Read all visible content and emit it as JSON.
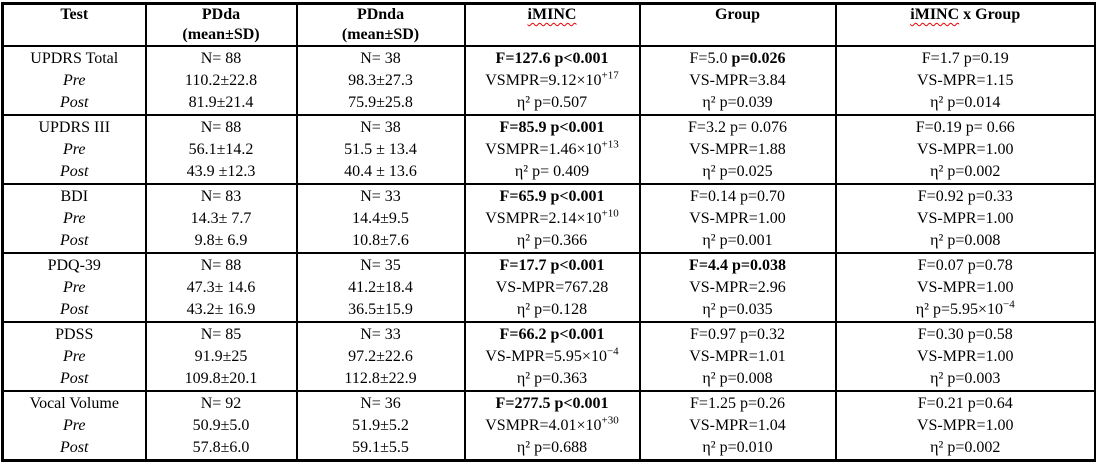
{
  "accent_colors": {
    "spellcheck_underline": "#ea0000",
    "table_border": "#000000",
    "text": "#000000",
    "background": "#ffffff"
  },
  "header": {
    "test": "Test",
    "pdda_line1": "PDda",
    "pdda_line2": "(mean±SD)",
    "pdnda_line1": "PDnda",
    "pdnda_line2": "(mean±SD)",
    "iminc": "iMINC",
    "group": "Group",
    "iminc_x_group_part1": "iMINC",
    "iminc_x_group_part2": " x Group"
  },
  "rows": [
    {
      "id": "updrs-total",
      "cells": [
        {
          "lines": [
            [
              {
                "t": "UPDRS Total"
              }
            ],
            [
              {
                "t": "Pre",
                "i": true
              }
            ],
            [
              {
                "t": "Post",
                "i": true
              }
            ]
          ]
        },
        {
          "lines": [
            [
              {
                "t": "N= 88"
              }
            ],
            [
              {
                "t": "110.2±22.8"
              }
            ],
            [
              {
                "t": "81.9±21.4"
              }
            ]
          ]
        },
        {
          "lines": [
            [
              {
                "t": "N= 38"
              }
            ],
            [
              {
                "t": "98.3±27.3"
              }
            ],
            [
              {
                "t": "75.9±25.8"
              }
            ]
          ]
        },
        {
          "lines": [
            [
              {
                "t": "F=127.6 p<0.001",
                "b": true
              }
            ],
            [
              {
                "t": "VSMPR=9.12×10"
              },
              {
                "t": "+17",
                "sup": true
              }
            ],
            [
              {
                "t": "η² p=0.507"
              }
            ]
          ]
        },
        {
          "lines": [
            [
              {
                "t": "F=5.0 "
              },
              {
                "t": "p=0.026",
                "b": true
              }
            ],
            [
              {
                "t": "VS-MPR=3.84"
              }
            ],
            [
              {
                "t": "η² p=0.039"
              }
            ]
          ]
        },
        {
          "lines": [
            [
              {
                "t": "F=1.7 p=0.19"
              }
            ],
            [
              {
                "t": "VS-MPR=1.15"
              }
            ],
            [
              {
                "t": "η² p=0.014"
              }
            ]
          ]
        }
      ]
    },
    {
      "id": "updrs-iii",
      "cells": [
        {
          "lines": [
            [
              {
                "t": "UPDRS III"
              }
            ],
            [
              {
                "t": "Pre",
                "i": true
              }
            ],
            [
              {
                "t": "Post",
                "i": true
              }
            ]
          ]
        },
        {
          "lines": [
            [
              {
                "t": "N= 88"
              }
            ],
            [
              {
                "t": "56.1±14.2"
              }
            ],
            [
              {
                "t": "43.9 ±12.3"
              }
            ]
          ]
        },
        {
          "lines": [
            [
              {
                "t": "N= 38"
              }
            ],
            [
              {
                "t": "51.5 ± 13.4"
              }
            ],
            [
              {
                "t": "40.4 ± 13.6"
              }
            ]
          ]
        },
        {
          "lines": [
            [
              {
                "t": "F=85.9 p<0.001",
                "b": true
              }
            ],
            [
              {
                "t": "VSMPR=1.46×10"
              },
              {
                "t": "+13",
                "sup": true
              }
            ],
            [
              {
                "t": "η² p= 0.409"
              }
            ]
          ]
        },
        {
          "lines": [
            [
              {
                "t": "F=3.2 p= 0.076"
              }
            ],
            [
              {
                "t": "VS-MPR=1.88"
              }
            ],
            [
              {
                "t": "η² p=0.025"
              }
            ]
          ]
        },
        {
          "lines": [
            [
              {
                "t": "F=0.19 p= 0.66"
              }
            ],
            [
              {
                "t": "VS-MPR=1.00"
              }
            ],
            [
              {
                "t": "η² p=0.002"
              }
            ]
          ]
        }
      ]
    },
    {
      "id": "bdi",
      "cells": [
        {
          "lines": [
            [
              {
                "t": "BDI"
              }
            ],
            [
              {
                "t": "Pre",
                "i": true
              }
            ],
            [
              {
                "t": "Post",
                "i": true
              }
            ]
          ]
        },
        {
          "lines": [
            [
              {
                "t": "N= 83"
              }
            ],
            [
              {
                "t": "14.3± 7.7"
              }
            ],
            [
              {
                "t": "9.8± 6.9"
              }
            ]
          ]
        },
        {
          "lines": [
            [
              {
                "t": "N= 33"
              }
            ],
            [
              {
                "t": "14.4±9.5"
              }
            ],
            [
              {
                "t": "10.8±7.6"
              }
            ]
          ]
        },
        {
          "lines": [
            [
              {
                "t": "F=65.9 p<0.001",
                "b": true
              }
            ],
            [
              {
                "t": "VSMPR=2.14×10"
              },
              {
                "t": "+10",
                "sup": true
              }
            ],
            [
              {
                "t": "η² p=0.366"
              }
            ]
          ]
        },
        {
          "lines": [
            [
              {
                "t": "F=0.14 p=0.70"
              }
            ],
            [
              {
                "t": "VS-MPR=1.00"
              }
            ],
            [
              {
                "t": "η² p=0.001"
              }
            ]
          ]
        },
        {
          "lines": [
            [
              {
                "t": "F=0.92 p=0.33"
              }
            ],
            [
              {
                "t": "VS-MPR=1.00"
              }
            ],
            [
              {
                "t": "η² p=0.008"
              }
            ]
          ]
        }
      ]
    },
    {
      "id": "pdq-39",
      "cells": [
        {
          "lines": [
            [
              {
                "t": "PDQ-39"
              }
            ],
            [
              {
                "t": "Pre",
                "i": true
              }
            ],
            [
              {
                "t": "Post",
                "i": true
              }
            ]
          ]
        },
        {
          "lines": [
            [
              {
                "t": "N= 88"
              }
            ],
            [
              {
                "t": "47.3± 14.6"
              }
            ],
            [
              {
                "t": "43.2± 16.9"
              }
            ]
          ]
        },
        {
          "lines": [
            [
              {
                "t": "N= 35"
              }
            ],
            [
              {
                "t": "41.2±18.4"
              }
            ],
            [
              {
                "t": "36.5±15.9"
              }
            ]
          ]
        },
        {
          "lines": [
            [
              {
                "t": "F=17.7 p<0.001",
                "b": true
              }
            ],
            [
              {
                "t": "VS-MPR=767.28"
              }
            ],
            [
              {
                "t": "η² p=0.128"
              }
            ]
          ]
        },
        {
          "lines": [
            [
              {
                "t": "F=4.4 p=0.038",
                "b": true
              }
            ],
            [
              {
                "t": "VS-MPR=2.96"
              }
            ],
            [
              {
                "t": "η² p=0.035"
              }
            ]
          ]
        },
        {
          "lines": [
            [
              {
                "t": "F=0.07 p=0.78"
              }
            ],
            [
              {
                "t": "VS-MPR=1.00"
              }
            ],
            [
              {
                "t": "η² p=5.95×10"
              },
              {
                "t": "−4",
                "sup": true
              }
            ]
          ]
        }
      ]
    },
    {
      "id": "pdss",
      "cells": [
        {
          "lines": [
            [
              {
                "t": "PDSS"
              }
            ],
            [
              {
                "t": "Pre",
                "i": true
              }
            ],
            [
              {
                "t": "Post",
                "i": true
              }
            ]
          ]
        },
        {
          "lines": [
            [
              {
                "t": "N= 85"
              }
            ],
            [
              {
                "t": "91.9±25"
              }
            ],
            [
              {
                "t": "109.8±20.1"
              }
            ]
          ]
        },
        {
          "lines": [
            [
              {
                "t": "N= 33"
              }
            ],
            [
              {
                "t": "97.2±22.6"
              }
            ],
            [
              {
                "t": "112.8±22.9"
              }
            ]
          ]
        },
        {
          "lines": [
            [
              {
                "t": "F=66.2 p<0.001",
                "b": true
              }
            ],
            [
              {
                "t": "VS-MPR=5.95×10"
              },
              {
                "t": "−4",
                "sup": true
              }
            ],
            [
              {
                "t": "η² p=0.363"
              }
            ]
          ]
        },
        {
          "lines": [
            [
              {
                "t": "F=0.97 p=0.32"
              }
            ],
            [
              {
                "t": "VS-MPR=1.01"
              }
            ],
            [
              {
                "t": "η² p=0.008"
              }
            ]
          ]
        },
        {
          "lines": [
            [
              {
                "t": "F=0.30 p=0.58"
              }
            ],
            [
              {
                "t": "VS-MPR=1.00"
              }
            ],
            [
              {
                "t": "η² p=0.003"
              }
            ]
          ]
        }
      ]
    },
    {
      "id": "vocal-volume",
      "cells": [
        {
          "lines": [
            [
              {
                "t": "Vocal Volume"
              }
            ],
            [
              {
                "t": "Pre",
                "i": true
              }
            ],
            [
              {
                "t": "Post",
                "i": true
              }
            ]
          ]
        },
        {
          "lines": [
            [
              {
                "t": "N= 92"
              }
            ],
            [
              {
                "t": "50.9±5.0"
              }
            ],
            [
              {
                "t": "57.8±6.0"
              }
            ]
          ]
        },
        {
          "lines": [
            [
              {
                "t": "N= 36"
              }
            ],
            [
              {
                "t": "51.9±5.2"
              }
            ],
            [
              {
                "t": "59.1±5.5"
              }
            ]
          ]
        },
        {
          "lines": [
            [
              {
                "t": "F=277.5 p<0.001",
                "b": true
              }
            ],
            [
              {
                "t": "VSMPR=4.01×10"
              },
              {
                "t": "+30",
                "sup": true
              }
            ],
            [
              {
                "t": "η² p=0.688"
              }
            ]
          ]
        },
        {
          "lines": [
            [
              {
                "t": "F=1.25 p=0.26"
              }
            ],
            [
              {
                "t": "VS-MPR=1.04"
              }
            ],
            [
              {
                "t": "η² p=0.010"
              }
            ]
          ]
        },
        {
          "lines": [
            [
              {
                "t": "F=0.21 p=0.64"
              }
            ],
            [
              {
                "t": "VS-MPR=1.00"
              }
            ],
            [
              {
                "t": "η² p=0.002"
              }
            ]
          ]
        }
      ]
    }
  ]
}
